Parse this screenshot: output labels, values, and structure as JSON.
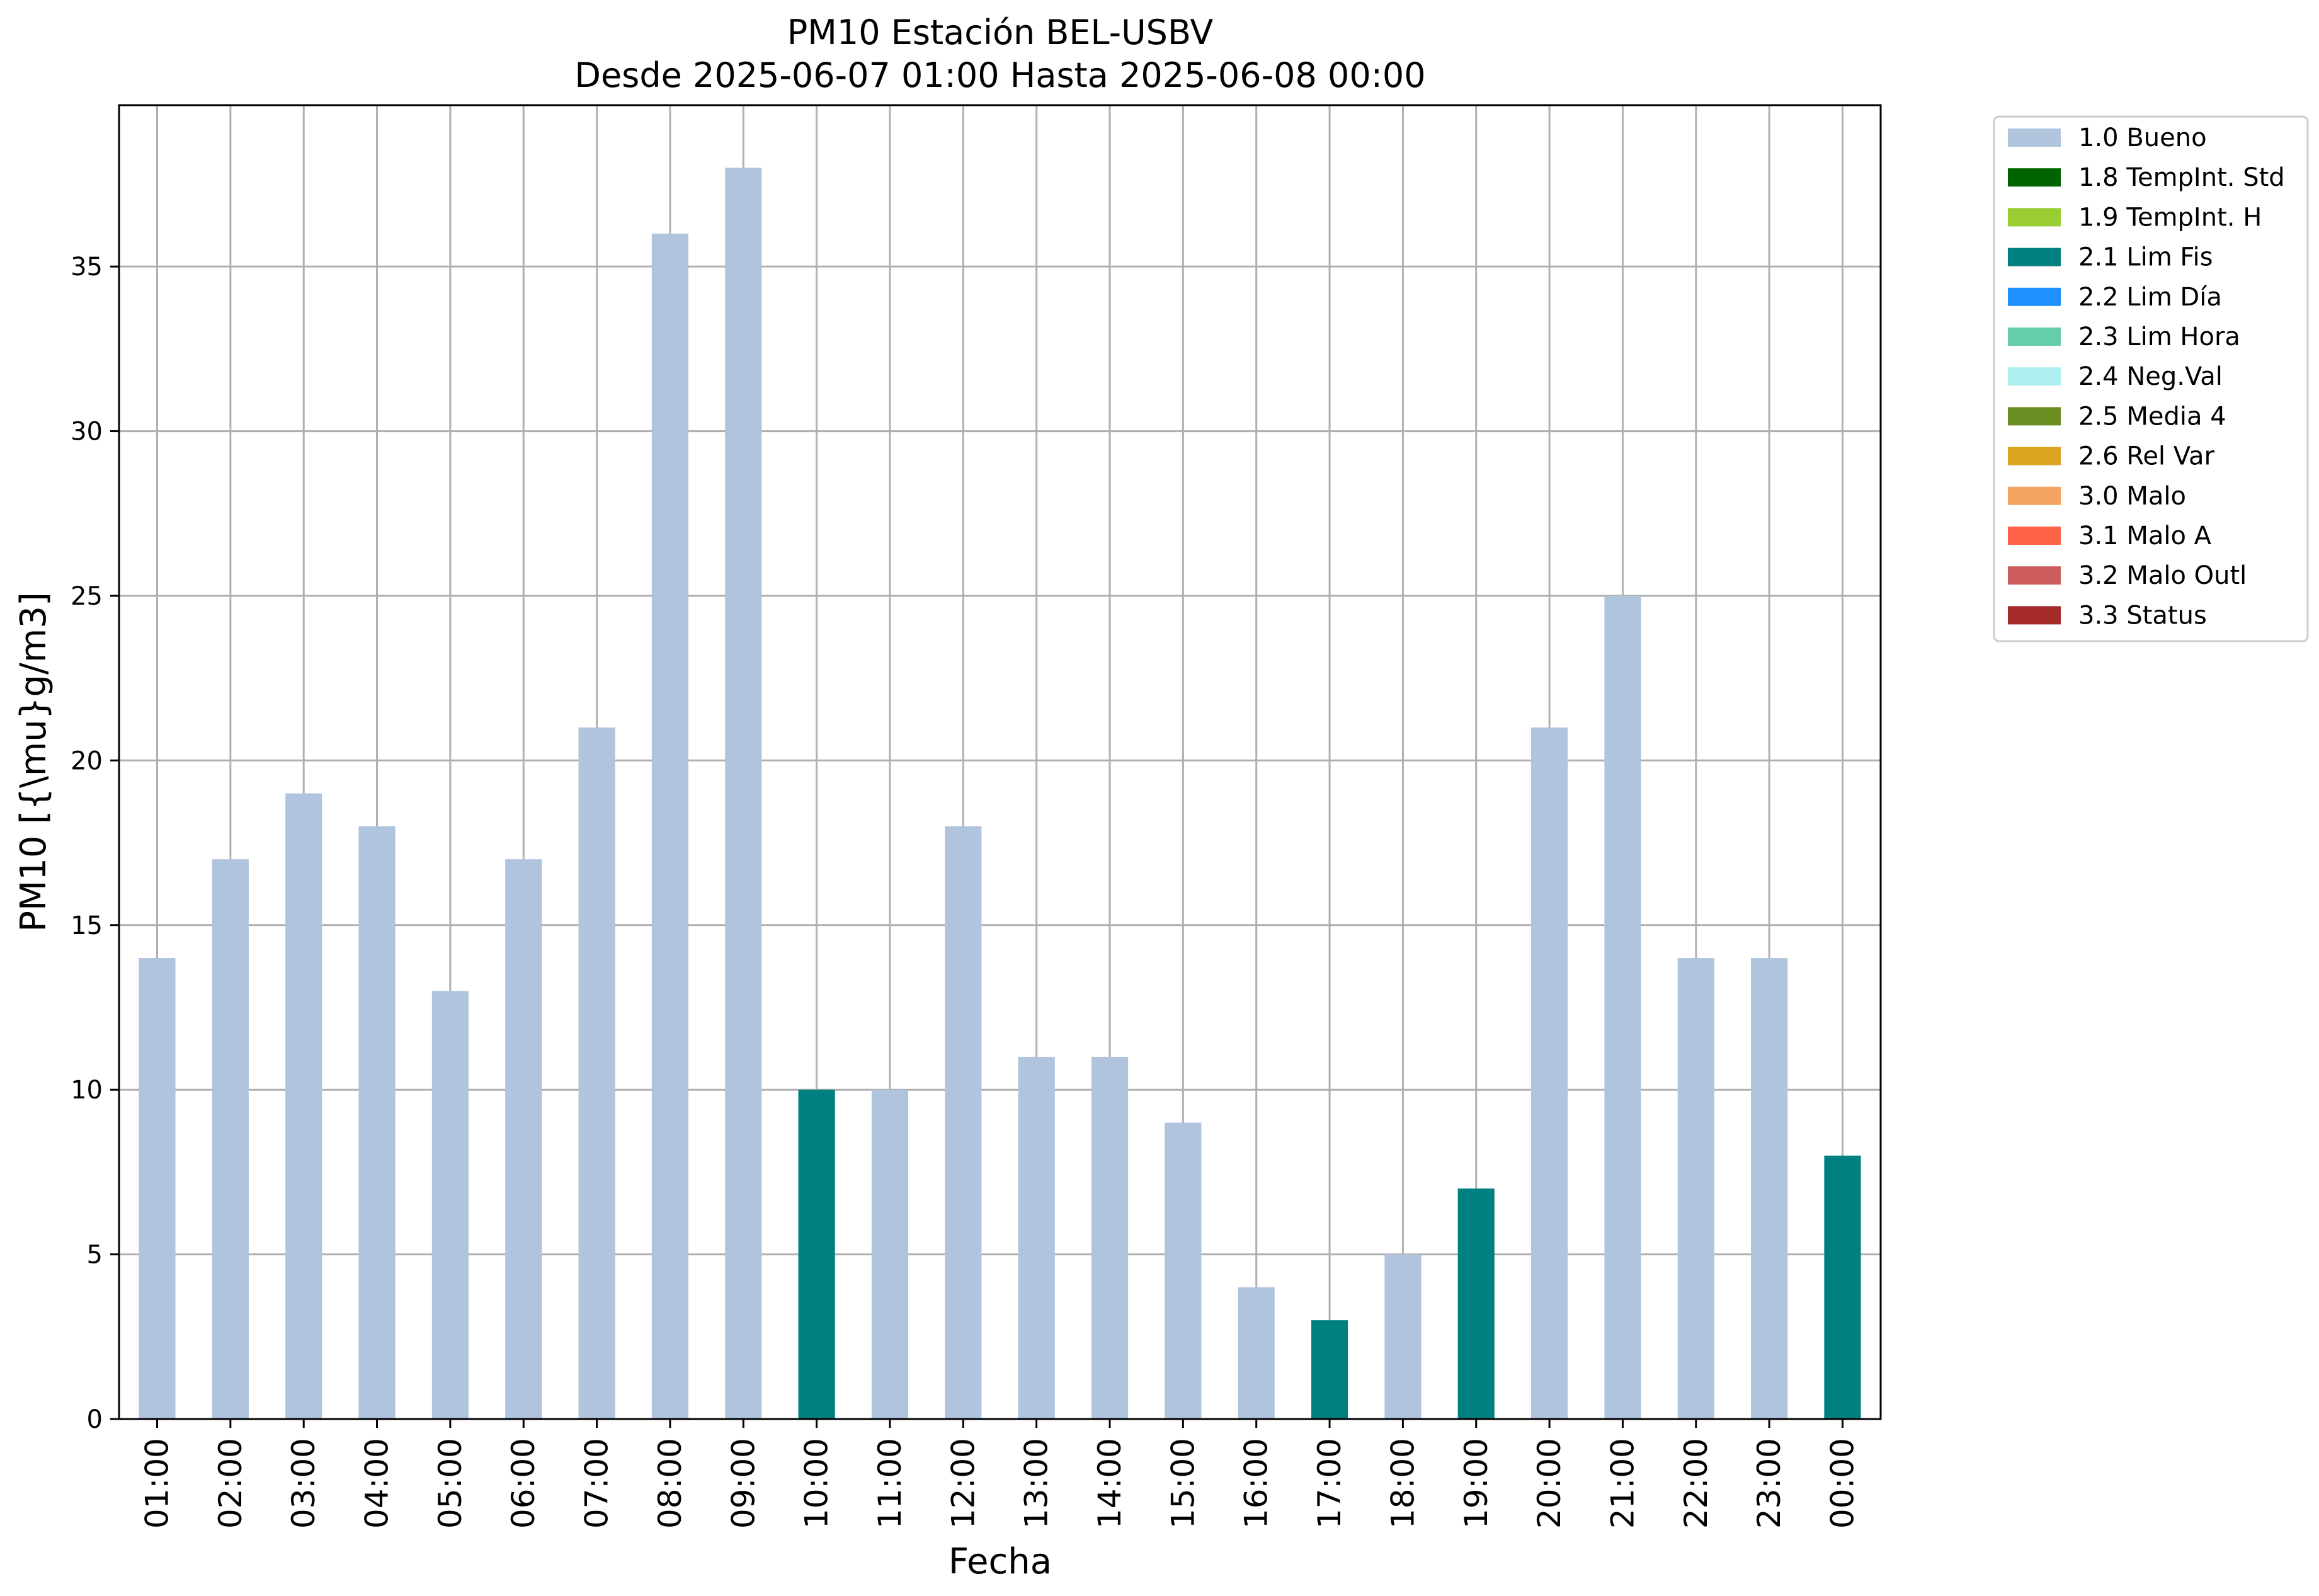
{
  "chart_data": {
    "type": "bar",
    "title": "PM10 Estación BEL-USBV",
    "subtitle": "Desde 2025-06-07 01:00 Hasta 2025-06-08 00:00",
    "xlabel": "Fecha",
    "ylabel": "PM10 [{\\mu}g/m3]",
    "ylim": [
      0,
      40
    ],
    "yticks": [
      0,
      5,
      10,
      15,
      20,
      25,
      30,
      35
    ],
    "grid": true,
    "legend_placement": "outside-top-right",
    "categories": [
      "01:00",
      "02:00",
      "03:00",
      "04:00",
      "05:00",
      "06:00",
      "07:00",
      "08:00",
      "09:00",
      "10:00",
      "11:00",
      "12:00",
      "13:00",
      "14:00",
      "15:00",
      "16:00",
      "17:00",
      "18:00",
      "19:00",
      "20:00",
      "21:00",
      "22:00",
      "23:00",
      "00:00"
    ],
    "values": [
      14,
      17,
      19,
      18,
      13,
      17,
      21,
      36,
      38,
      10,
      10,
      18,
      11,
      11,
      9,
      4,
      3,
      5,
      7,
      21,
      25,
      14,
      14,
      8
    ],
    "flags": [
      "1.0 Bueno",
      "1.0 Bueno",
      "1.0 Bueno",
      "1.0 Bueno",
      "1.0 Bueno",
      "1.0 Bueno",
      "1.0 Bueno",
      "1.0 Bueno",
      "1.0 Bueno",
      "2.1 Lim Fis",
      "1.0 Bueno",
      "1.0 Bueno",
      "1.0 Bueno",
      "1.0 Bueno",
      "1.0 Bueno",
      "1.0 Bueno",
      "2.1 Lim Fis",
      "1.0 Bueno",
      "2.1 Lim Fis",
      "1.0 Bueno",
      "1.0 Bueno",
      "1.0 Bueno",
      "1.0 Bueno",
      "2.1 Lim Fis"
    ],
    "legend": [
      {
        "label": "1.0 Bueno",
        "color": "#b0c4de"
      },
      {
        "label": "1.8 TempInt. Std",
        "color": "#006400"
      },
      {
        "label": "1.9 TempInt. H",
        "color": "#9acd32"
      },
      {
        "label": "2.1 Lim Fis",
        "color": "#008080"
      },
      {
        "label": "2.2 Lim Día",
        "color": "#1e90ff"
      },
      {
        "label": "2.3 Lim Hora",
        "color": "#66cdaa"
      },
      {
        "label": "2.4 Neg.Val",
        "color": "#afeeee"
      },
      {
        "label": "2.5 Media 4",
        "color": "#6b8e23"
      },
      {
        "label": "2.6 Rel Var",
        "color": "#daa520"
      },
      {
        "label": "3.0 Malo",
        "color": "#f4a460"
      },
      {
        "label": "3.1 Malo A",
        "color": "#ff6347"
      },
      {
        "label": "3.2 Malo Outl",
        "color": "#cd5c5c"
      },
      {
        "label": "3.3 Status",
        "color": "#a52a2a"
      }
    ]
  }
}
